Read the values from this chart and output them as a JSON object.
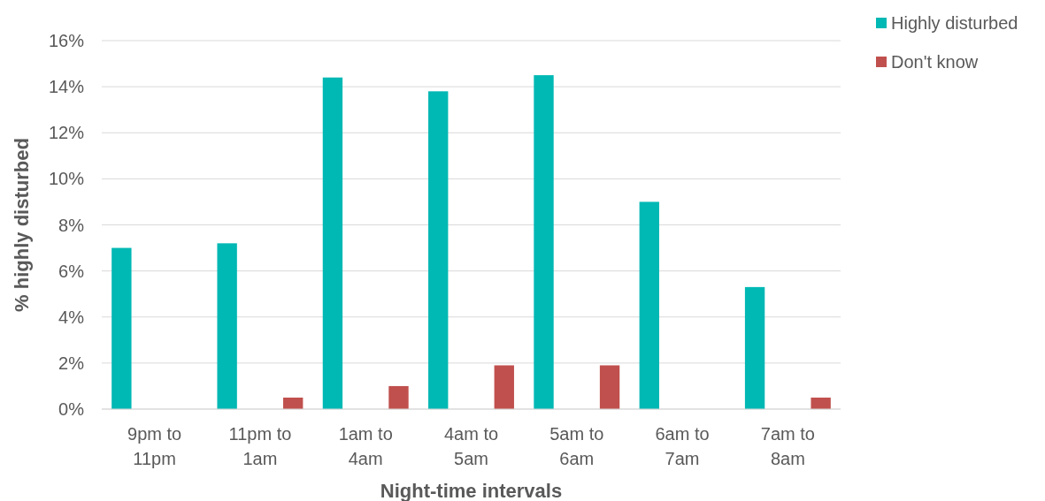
{
  "chart_data": {
    "type": "bar",
    "xlabel": "Night-time intervals",
    "ylabel": "% highly disturbed",
    "categories": [
      "9pm to 11pm",
      "11pm to 1am",
      "1am to 4am",
      "4am to 5am",
      "5am to 6am",
      "6am to 7am",
      "7am to 8am"
    ],
    "series": [
      {
        "name": "Highly disturbed",
        "color": "#00b8b4",
        "values": [
          7.0,
          7.2,
          14.4,
          13.8,
          14.5,
          9.0,
          5.3
        ]
      },
      {
        "name": "Don't know",
        "color": "#c0504d",
        "values": [
          null,
          0.5,
          1.0,
          1.9,
          1.9,
          null,
          0.5
        ]
      }
    ],
    "ylim": [
      0,
      16
    ],
    "yticks": [
      {
        "value": 0,
        "label": "0%"
      },
      {
        "value": 2,
        "label": "2%"
      },
      {
        "value": 4,
        "label": "4%"
      },
      {
        "value": 6,
        "label": "6%"
      },
      {
        "value": 8,
        "label": "8%"
      },
      {
        "value": 10,
        "label": "10%"
      },
      {
        "value": 12,
        "label": "12%"
      },
      {
        "value": 14,
        "label": "14%"
      },
      {
        "value": 16,
        "label": "16%"
      }
    ],
    "grid": "y",
    "legend": "top right"
  }
}
